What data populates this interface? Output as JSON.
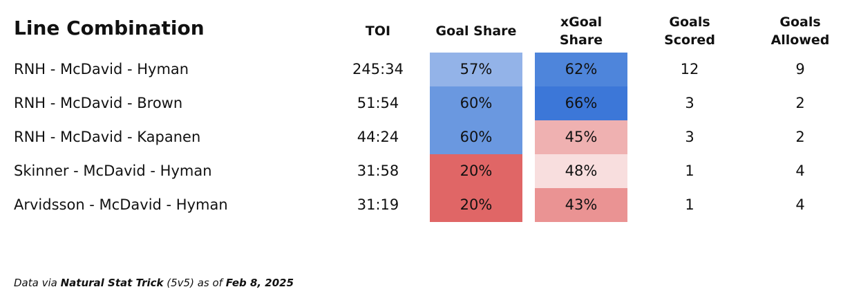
{
  "table": {
    "headers": [
      "Line Combination",
      "TOI",
      "Goal Share",
      "xGoal Share",
      "Goals Scored",
      "Goals Allowed"
    ],
    "rows": [
      [
        "RNH - McDavid - Hyman",
        "245:34",
        {
          "text": "57%",
          "color": "#93b3e8"
        },
        {
          "text": "62%",
          "color": "#4e85db"
        },
        "12",
        "9"
      ],
      [
        "RNH - McDavid - Brown",
        "51:54",
        {
          "text": "60%",
          "color": "#6a98e0"
        },
        {
          "text": "66%",
          "color": "#3c77d8"
        },
        "3",
        "2"
      ],
      [
        "RNH - McDavid - Kapanen",
        "44:24",
        {
          "text": "60%",
          "color": "#6a98e0"
        },
        {
          "text": "45%",
          "color": "#efb1b1"
        },
        "3",
        "2"
      ],
      [
        "Skinner - McDavid - Hyman",
        "31:58",
        {
          "text": "20%",
          "color": "#e06666"
        },
        {
          "text": "48%",
          "color": "#f8dede"
        },
        "1",
        "4"
      ],
      [
        "Arvidsson - McDavid - Hyman",
        "31:19",
        {
          "text": "20%",
          "color": "#e06666"
        },
        {
          "text": "43%",
          "color": "#ea9393"
        },
        "1",
        "4"
      ]
    ]
  },
  "footer": [
    "Data via",
    "Natural Stat Trick",
    "(5v5) as of",
    "Feb 8, 2025"
  ]
}
